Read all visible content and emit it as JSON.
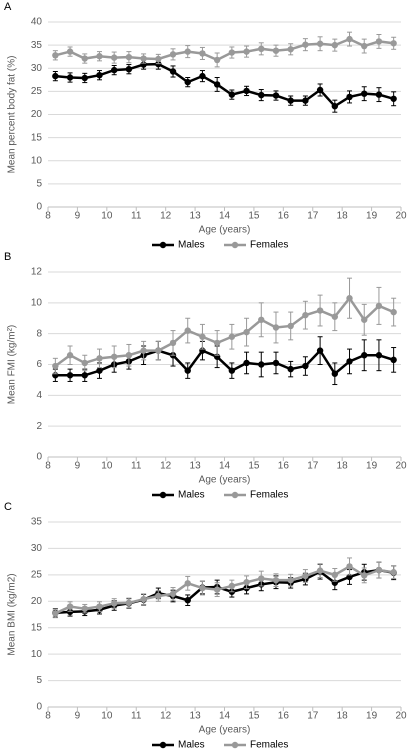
{
  "chart_data": [
    {
      "type": "line",
      "title": "A",
      "y_label": "Mean percent body fat (%)",
      "x_label": "Age (years)",
      "x": [
        8.25,
        8.75,
        9.25,
        9.75,
        10.25,
        10.75,
        11.25,
        11.75,
        12.25,
        12.75,
        13.25,
        13.75,
        14.25,
        14.75,
        15.25,
        15.75,
        16.25,
        16.75,
        17.25,
        17.75,
        18.25,
        18.75,
        19.25,
        19.75
      ],
      "xlim": [
        8,
        20
      ],
      "xticks": [
        8,
        9,
        10,
        11,
        12,
        13,
        14,
        15,
        16,
        17,
        18,
        19,
        20
      ],
      "ylim": [
        0,
        40
      ],
      "yticks": [
        0,
        5,
        10,
        15,
        20,
        25,
        30,
        35,
        40
      ],
      "grid": true,
      "legend": "bottom",
      "series": [
        {
          "name": "Males",
          "color": "#000000",
          "values": [
            28.3,
            28.0,
            27.9,
            28.5,
            29.6,
            29.8,
            30.8,
            30.9,
            29.3,
            27.0,
            28.3,
            26.5,
            24.3,
            25.1,
            24.2,
            24.1,
            23.0,
            23.0,
            25.3,
            21.8,
            23.8,
            24.5,
            24.3,
            23.4
          ],
          "errors": [
            1.0,
            1.0,
            1.0,
            1.0,
            1.0,
            1.0,
            1.0,
            1.1,
            1.2,
            1.0,
            1.2,
            1.5,
            1.0,
            1.0,
            1.2,
            1.0,
            1.0,
            1.0,
            1.3,
            1.3,
            1.3,
            1.5,
            1.5,
            1.5
          ]
        },
        {
          "name": "Females",
          "color": "#999999",
          "values": [
            32.8,
            33.6,
            32.1,
            32.6,
            32.3,
            32.4,
            32.1,
            32.0,
            33.0,
            33.6,
            33.2,
            31.8,
            33.4,
            33.6,
            34.2,
            33.8,
            34.1,
            35.1,
            35.3,
            35.0,
            36.3,
            34.8,
            35.8,
            35.4
          ],
          "errors": [
            1.0,
            1.0,
            1.0,
            1.0,
            1.2,
            1.2,
            1.0,
            1.0,
            1.2,
            1.3,
            1.3,
            1.5,
            1.2,
            1.2,
            1.3,
            1.2,
            1.2,
            1.3,
            1.5,
            1.3,
            1.5,
            1.5,
            1.5,
            1.3
          ]
        }
      ]
    },
    {
      "type": "line",
      "title": "B",
      "y_label": "Mean FMI (kg/m²)",
      "x_label": "Age (years)",
      "x": [
        8.25,
        8.75,
        9.25,
        9.75,
        10.25,
        10.75,
        11.25,
        11.75,
        12.25,
        12.75,
        13.25,
        13.75,
        14.25,
        14.75,
        15.25,
        15.75,
        16.25,
        16.75,
        17.25,
        17.75,
        18.25,
        18.75,
        19.25,
        19.75
      ],
      "xlim": [
        8,
        20
      ],
      "xticks": [
        8,
        9,
        10,
        11,
        12,
        13,
        14,
        15,
        16,
        17,
        18,
        19,
        20
      ],
      "ylim": [
        0,
        12
      ],
      "yticks": [
        0,
        2,
        4,
        6,
        8,
        10,
        12
      ],
      "grid": true,
      "legend": "bottom",
      "series": [
        {
          "name": "Males",
          "color": "#000000",
          "values": [
            5.3,
            5.3,
            5.3,
            5.6,
            6.0,
            6.2,
            6.6,
            6.9,
            6.6,
            5.6,
            6.9,
            6.5,
            5.6,
            6.1,
            6.0,
            6.1,
            5.7,
            5.9,
            6.9,
            5.4,
            6.2,
            6.6,
            6.6,
            6.3
          ],
          "errors": [
            0.4,
            0.4,
            0.4,
            0.5,
            0.5,
            0.5,
            0.6,
            0.6,
            0.7,
            0.5,
            0.6,
            0.7,
            0.5,
            0.7,
            0.8,
            0.7,
            0.5,
            0.6,
            0.9,
            0.7,
            0.8,
            1.0,
            1.0,
            0.8
          ]
        },
        {
          "name": "Females",
          "color": "#999999",
          "values": [
            5.9,
            6.6,
            6.1,
            6.4,
            6.5,
            6.6,
            6.9,
            6.9,
            7.4,
            8.2,
            7.8,
            7.4,
            7.8,
            8.1,
            8.9,
            8.4,
            8.5,
            9.2,
            9.5,
            9.1,
            10.3,
            8.9,
            9.8,
            9.4
          ],
          "errors": [
            0.5,
            0.6,
            0.5,
            0.6,
            0.7,
            0.7,
            0.6,
            0.6,
            0.8,
            0.8,
            0.8,
            0.8,
            0.8,
            0.9,
            1.1,
            1.0,
            0.9,
            0.9,
            1.0,
            0.9,
            1.3,
            1.0,
            1.2,
            0.9
          ]
        }
      ]
    },
    {
      "type": "line",
      "title": "C",
      "y_label": "Mean BMI (kg/m2)",
      "x_label": "Age (years)",
      "x": [
        8.25,
        8.75,
        9.25,
        9.75,
        10.25,
        10.75,
        11.25,
        11.75,
        12.25,
        12.75,
        13.25,
        13.75,
        14.25,
        14.75,
        15.25,
        15.75,
        16.25,
        16.75,
        17.25,
        17.75,
        18.25,
        18.75,
        19.25,
        19.75
      ],
      "xlim": [
        8,
        20
      ],
      "xticks": [
        8,
        9,
        10,
        11,
        12,
        13,
        14,
        15,
        16,
        17,
        18,
        19,
        20
      ],
      "ylim": [
        0,
        35
      ],
      "yticks": [
        0,
        5,
        10,
        15,
        20,
        25,
        30,
        35
      ],
      "grid": true,
      "legend": "bottom",
      "series": [
        {
          "name": "Males",
          "color": "#000000",
          "values": [
            17.8,
            18.0,
            18.1,
            18.4,
            19.2,
            19.6,
            20.3,
            21.5,
            21.0,
            20.2,
            22.6,
            22.7,
            21.8,
            22.5,
            23.2,
            23.6,
            23.5,
            24.2,
            25.6,
            23.5,
            24.6,
            25.5,
            25.9,
            25.4
          ],
          "errors": [
            0.8,
            0.8,
            0.8,
            0.8,
            0.9,
            0.9,
            1.0,
            1.0,
            1.1,
            1.0,
            1.2,
            1.3,
            1.0,
            1.1,
            1.2,
            1.2,
            1.0,
            1.1,
            1.4,
            1.3,
            1.4,
            1.5,
            1.5,
            1.3
          ]
        },
        {
          "name": "Females",
          "color": "#999999",
          "values": [
            17.7,
            19.0,
            18.6,
            19.0,
            19.6,
            19.7,
            20.4,
            21.0,
            21.4,
            23.4,
            22.5,
            22.2,
            22.9,
            23.6,
            24.3,
            24.0,
            24.0,
            24.8,
            25.8,
            25.0,
            26.6,
            24.9,
            25.9,
            25.5
          ],
          "errors": [
            0.8,
            0.9,
            0.8,
            0.9,
            0.9,
            0.9,
            1.0,
            1.0,
            1.2,
            1.3,
            1.3,
            1.3,
            1.1,
            1.2,
            1.4,
            1.2,
            1.1,
            1.2,
            1.3,
            1.2,
            1.6,
            1.4,
            1.5,
            1.2
          ]
        }
      ]
    }
  ]
}
